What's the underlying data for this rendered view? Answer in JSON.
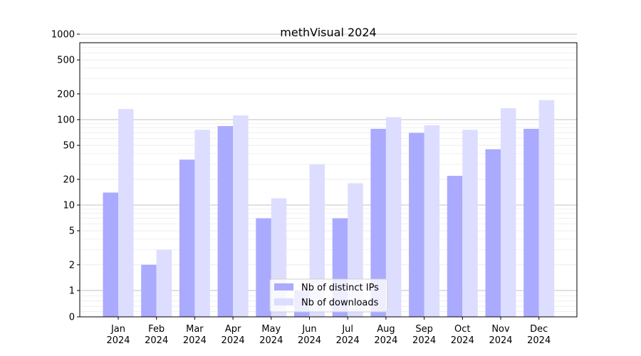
{
  "chart_data": {
    "type": "bar",
    "title": "methVisual 2024",
    "xlabel": "",
    "ylabel": "",
    "y_scale": "symlog",
    "ylim": [
      0,
      1300
    ],
    "y_ticks": [
      "0",
      "1",
      "2",
      "5",
      "10",
      "20",
      "50",
      "100",
      "200",
      "500",
      "1000"
    ],
    "categories": [
      [
        "Jan",
        "2024"
      ],
      [
        "Feb",
        "2024"
      ],
      [
        "Mar",
        "2024"
      ],
      [
        "Apr",
        "2024"
      ],
      [
        "May",
        "2024"
      ],
      [
        "Jun",
        "2024"
      ],
      [
        "Jul",
        "2024"
      ],
      [
        "Aug",
        "2024"
      ],
      [
        "Sep",
        "2024"
      ],
      [
        "Oct",
        "2024"
      ],
      [
        "Nov",
        "2024"
      ],
      [
        "Dec",
        "2024"
      ]
    ],
    "series": [
      {
        "name": "Nb of distinct IPs",
        "color": "#aaaaff",
        "values": [
          14,
          2,
          34,
          84,
          7,
          1,
          7,
          78,
          70,
          22,
          45,
          78
        ]
      },
      {
        "name": "Nb of downloads",
        "color": "#ddddff",
        "values": [
          133,
          3,
          76,
          112,
          12,
          30,
          18,
          107,
          86,
          76,
          136,
          169
        ]
      }
    ],
    "grid": true,
    "legend_position": "bottom-center"
  }
}
